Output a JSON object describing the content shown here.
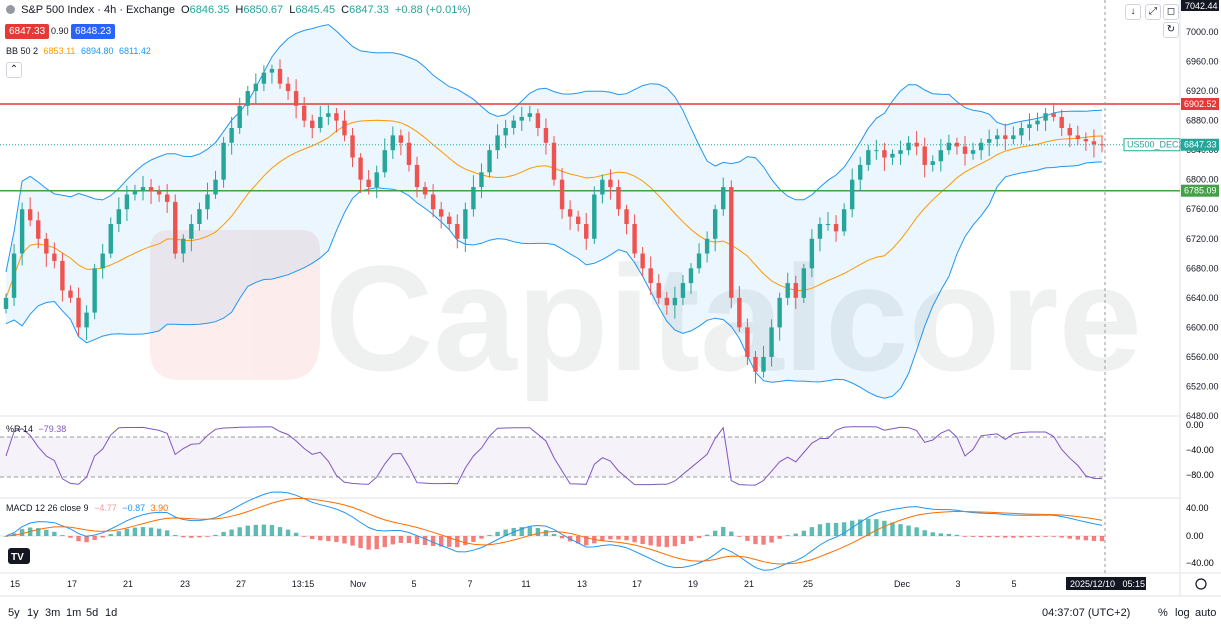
{
  "header": {
    "title": "S&P 500 Index · 4h · Exchange",
    "open_label": "O",
    "open": "6846.35",
    "high_label": "H",
    "high": "6850.67",
    "low_label": "L",
    "low": "6845.45",
    "close_label": "C",
    "close": "6847.33",
    "change": "+0.88 (+0.01%)"
  },
  "quote": {
    "sell": "6847.33",
    "spread": "0.90",
    "buy": "6848.23"
  },
  "indicators": {
    "bb_label": "BB 50 2",
    "bb_mid": "6853.11",
    "bb_up": "6894.80",
    "bb_low": "6811.42",
    "wr_label": "%R 14",
    "wr_value": "−79.38",
    "macd_label": "MACD 12 26 close 9",
    "macd_hist": "−4.77",
    "macd_line": "−0.87",
    "macd_signal": "3.90"
  },
  "price_axis": {
    "ticks": [
      "7000.00",
      "6960.00",
      "6920.00",
      "6880.00",
      "6840.00",
      "6800.00",
      "6760.00",
      "6720.00",
      "6680.00",
      "6640.00",
      "6600.00",
      "6560.00",
      "6520.00",
      "6480.00"
    ],
    "top_label": "7042.44",
    "resistance_label": "6902.52",
    "current_label": "6847.33",
    "support_label": "6785.09",
    "symbol_label": "US500_DEC25"
  },
  "wr_axis": {
    "ticks": [
      "0.00",
      "−40.00",
      "−80.00"
    ]
  },
  "macd_axis": {
    "ticks": [
      "40.00",
      "0.00",
      "−40.00"
    ]
  },
  "time_axis": {
    "labels": [
      "15",
      "17",
      "21",
      "23",
      "27",
      "13:15",
      "Nov",
      "5",
      "7",
      "11",
      "13",
      "17",
      "19",
      "21",
      "25",
      "Dec",
      "3",
      "5"
    ],
    "cursor_label": "2025/12/10   05:15"
  },
  "footer": {
    "timeframes": [
      "5y",
      "1y",
      "3m",
      "1m",
      "5d",
      "1d"
    ],
    "clock": "04:37:07 (UTC+2)",
    "pct": "%",
    "log": "log",
    "auto": "auto"
  },
  "watermark": "Capitalcore",
  "colors": {
    "up": "#26a69a",
    "down": "#ef5350",
    "bb_band": "#2196f3",
    "bb_mid": "#ff9800",
    "resistance": "#e53935",
    "support": "#43a047",
    "wr_line": "#7e57c2",
    "macd_line": "#2196f3",
    "macd_signal": "#ff6d00"
  },
  "chart_data": {
    "type": "candlestick",
    "ylim": [
      6480,
      7042.44
    ],
    "resistance": 6902.52,
    "support": 6785.09,
    "last": 6847.33,
    "ohlc_path": [
      6640,
      6700,
      6760,
      6745,
      6720,
      6700,
      6690,
      6650,
      6640,
      6600,
      6620,
      6680,
      6700,
      6740,
      6760,
      6780,
      6785,
      6790,
      6785,
      6780,
      6770,
      6700,
      6720,
      6740,
      6760,
      6780,
      6800,
      6850,
      6870,
      6900,
      6920,
      6930,
      6945,
      6950,
      6930,
      6920,
      6900,
      6880,
      6870,
      6885,
      6890,
      6880,
      6860,
      6830,
      6800,
      6790,
      6810,
      6840,
      6860,
      6850,
      6820,
      6790,
      6780,
      6760,
      6750,
      6740,
      6720,
      6760,
      6790,
      6810,
      6840,
      6860,
      6870,
      6880,
      6885,
      6890,
      6870,
      6850,
      6800,
      6760,
      6750,
      6740,
      6720,
      6780,
      6800,
      6790,
      6760,
      6740,
      6700,
      6680,
      6660,
      6640,
      6630,
      6640,
      6660,
      6680,
      6700,
      6720,
      6760,
      6790,
      6640,
      6600,
      6560,
      6540,
      6560,
      6600,
      6640,
      6660,
      6640,
      6680,
      6720,
      6740,
      6740,
      6730,
      6760,
      6800,
      6820,
      6840,
      6840,
      6830,
      6835,
      6840,
      6850,
      6845,
      6820,
      6825,
      6840,
      6850,
      6845,
      6835,
      6840,
      6850,
      6855,
      6860,
      6855,
      6860,
      6870,
      6875,
      6880,
      6890,
      6885,
      6870,
      6860,
      6855,
      6852,
      6848,
      6847
    ]
  }
}
